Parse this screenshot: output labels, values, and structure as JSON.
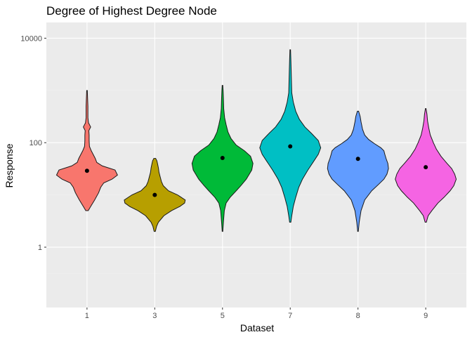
{
  "chart_data": {
    "type": "violin",
    "title": "Degree of Highest Degree Node",
    "xlabel": "Dataset",
    "ylabel": "Response",
    "y_scale": "log10",
    "ylim": [
      0.07,
      20000
    ],
    "y_ticks": [
      1,
      100,
      10000
    ],
    "y_tick_labels": [
      "1",
      "100",
      "10000"
    ],
    "grid": true,
    "legend": "none",
    "categories": [
      "1",
      "3",
      "5",
      "7",
      "8",
      "9"
    ],
    "colors": [
      "#f8766d",
      "#b79f00",
      "#00ba38",
      "#00bfc4",
      "#619cff",
      "#f564e3"
    ],
    "series": [
      {
        "category": "1",
        "min": 5,
        "max": 1000,
        "mean": 29,
        "density": [
          [
            5,
            0.04
          ],
          [
            6,
            0.12
          ],
          [
            8,
            0.25
          ],
          [
            11,
            0.38
          ],
          [
            14,
            0.45
          ],
          [
            17,
            0.55
          ],
          [
            20,
            0.82
          ],
          [
            24,
            1.0
          ],
          [
            30,
            0.92
          ],
          [
            36,
            0.5
          ],
          [
            42,
            0.32
          ],
          [
            50,
            0.27
          ],
          [
            60,
            0.2
          ],
          [
            70,
            0.14
          ],
          [
            85,
            0.08
          ],
          [
            110,
            0.07
          ],
          [
            140,
            0.07
          ],
          [
            170,
            0.06
          ],
          [
            200,
            0.12
          ],
          [
            240,
            0.05
          ],
          [
            300,
            0.03
          ],
          [
            400,
            0.03
          ],
          [
            500,
            0.03
          ],
          [
            700,
            0.02
          ],
          [
            1000,
            0.01
          ]
        ]
      },
      {
        "category": "3",
        "min": 2,
        "max": 50,
        "mean": 10,
        "density": [
          [
            2,
            0.02
          ],
          [
            2.5,
            0.06
          ],
          [
            3,
            0.12
          ],
          [
            4,
            0.3
          ],
          [
            5,
            0.55
          ],
          [
            6,
            0.82
          ],
          [
            7,
            0.98
          ],
          [
            8,
            1.0
          ],
          [
            10,
            0.75
          ],
          [
            12,
            0.45
          ],
          [
            15,
            0.28
          ],
          [
            18,
            0.22
          ],
          [
            22,
            0.18
          ],
          [
            27,
            0.14
          ],
          [
            33,
            0.12
          ],
          [
            40,
            0.09
          ],
          [
            45,
            0.07
          ],
          [
            50,
            0.03
          ]
        ]
      },
      {
        "category": "5",
        "min": 2,
        "max": 1250,
        "mean": 51,
        "density": [
          [
            2,
            0.01
          ],
          [
            3,
            0.03
          ],
          [
            5,
            0.06
          ],
          [
            7,
            0.12
          ],
          [
            9,
            0.25
          ],
          [
            12,
            0.45
          ],
          [
            15,
            0.6
          ],
          [
            20,
            0.78
          ],
          [
            30,
            0.96
          ],
          [
            40,
            1.0
          ],
          [
            55,
            0.92
          ],
          [
            70,
            0.72
          ],
          [
            90,
            0.45
          ],
          [
            120,
            0.28
          ],
          [
            160,
            0.18
          ],
          [
            220,
            0.12
          ],
          [
            300,
            0.07
          ],
          [
            450,
            0.04
          ],
          [
            700,
            0.03
          ],
          [
            1000,
            0.02
          ],
          [
            1250,
            0.01
          ]
        ]
      },
      {
        "category": "7",
        "min": 3,
        "max": 6000,
        "mean": 85,
        "density": [
          [
            3,
            0.02
          ],
          [
            4,
            0.05
          ],
          [
            6,
            0.1
          ],
          [
            9,
            0.18
          ],
          [
            14,
            0.28
          ],
          [
            20,
            0.4
          ],
          [
            30,
            0.58
          ],
          [
            45,
            0.78
          ],
          [
            60,
            0.92
          ],
          [
            80,
            1.0
          ],
          [
            110,
            0.92
          ],
          [
            150,
            0.7
          ],
          [
            200,
            0.48
          ],
          [
            280,
            0.3
          ],
          [
            400,
            0.18
          ],
          [
            600,
            0.1
          ],
          [
            900,
            0.05
          ],
          [
            1500,
            0.04
          ],
          [
            2500,
            0.03
          ],
          [
            4000,
            0.02
          ],
          [
            6000,
            0.01
          ]
        ]
      },
      {
        "category": "8",
        "min": 2,
        "max": 400,
        "mean": 49,
        "density": [
          [
            2,
            0.01
          ],
          [
            3,
            0.04
          ],
          [
            5,
            0.1
          ],
          [
            8,
            0.22
          ],
          [
            12,
            0.45
          ],
          [
            16,
            0.68
          ],
          [
            20,
            0.85
          ],
          [
            25,
            0.95
          ],
          [
            32,
            1.0
          ],
          [
            40,
            0.98
          ],
          [
            50,
            0.92
          ],
          [
            60,
            0.88
          ],
          [
            70,
            0.85
          ],
          [
            80,
            0.75
          ],
          [
            95,
            0.55
          ],
          [
            115,
            0.35
          ],
          [
            140,
            0.22
          ],
          [
            180,
            0.15
          ],
          [
            250,
            0.1
          ],
          [
            320,
            0.07
          ],
          [
            400,
            0.02
          ]
        ]
      },
      {
        "category": "9",
        "min": 3,
        "max": 450,
        "mean": 34,
        "density": [
          [
            3,
            0.02
          ],
          [
            4,
            0.08
          ],
          [
            5,
            0.2
          ],
          [
            7,
            0.4
          ],
          [
            9,
            0.6
          ],
          [
            12,
            0.8
          ],
          [
            15,
            0.92
          ],
          [
            20,
            1.0
          ],
          [
            25,
            0.95
          ],
          [
            32,
            0.85
          ],
          [
            40,
            0.7
          ],
          [
            55,
            0.5
          ],
          [
            75,
            0.35
          ],
          [
            100,
            0.25
          ],
          [
            140,
            0.15
          ],
          [
            190,
            0.1
          ],
          [
            260,
            0.06
          ],
          [
            350,
            0.04
          ],
          [
            450,
            0.01
          ]
        ]
      }
    ]
  }
}
